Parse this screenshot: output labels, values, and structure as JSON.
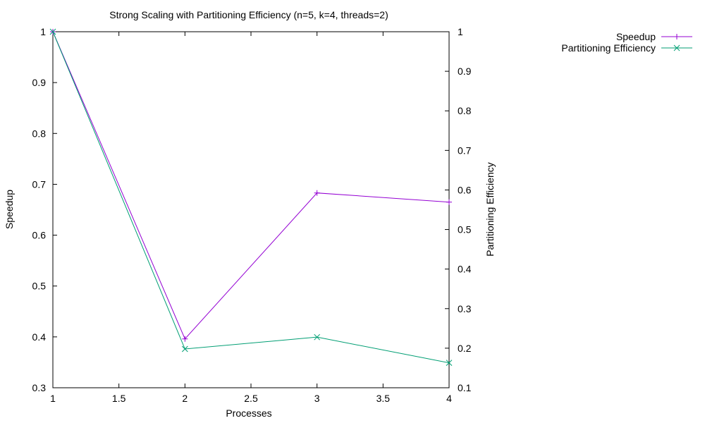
{
  "chart_data": {
    "type": "line",
    "title": "Strong Scaling with Partitioning Efficiency (n=5, k=4, threads=2)",
    "xlabel": "Processes",
    "ylabel": "Speedup",
    "y2label": "Partitioning Efficiency",
    "xlim": [
      1,
      4
    ],
    "ylim": [
      0.3,
      1
    ],
    "y2lim": [
      0.1,
      1
    ],
    "x_ticks": [
      "1",
      "1.5",
      "2",
      "2.5",
      "3",
      "3.5",
      "4"
    ],
    "y_ticks": [
      "0.3",
      "0.4",
      "0.5",
      "0.6",
      "0.7",
      "0.8",
      "0.9",
      "1"
    ],
    "y2_ticks": [
      "0.1",
      "0.2",
      "0.3",
      "0.4",
      "0.5",
      "0.6",
      "0.7",
      "0.8",
      "0.9",
      "1"
    ],
    "grid": false,
    "legend_position": "top-right",
    "series": [
      {
        "name": "Speedup",
        "axis": "y",
        "color": "#9400d3",
        "marker": "plus",
        "x": [
          1,
          2,
          3,
          4
        ],
        "values": [
          1.0,
          0.396,
          0.683,
          0.665
        ]
      },
      {
        "name": "Partitioning Efficiency",
        "axis": "y2",
        "color": "#009e73",
        "marker": "cross",
        "x": [
          1,
          2,
          3,
          4
        ],
        "values": [
          1.0,
          0.198,
          0.228,
          0.163
        ]
      }
    ]
  }
}
